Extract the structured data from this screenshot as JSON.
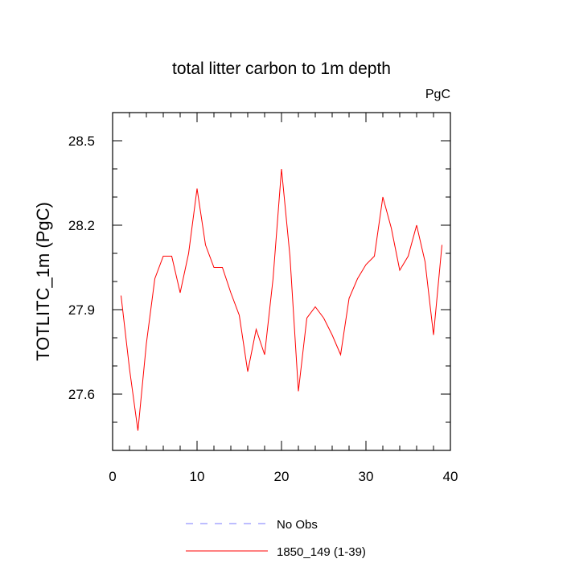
{
  "chart_data": {
    "type": "line",
    "title": "total litter carbon to 1m depth",
    "units_label": "PgC",
    "ylabel": "TOTLITC_1m  (PgC)",
    "xlabel": "",
    "xlim": [
      0,
      40
    ],
    "ylim": [
      27.4,
      28.6
    ],
    "x_major_ticks": [
      0,
      10,
      20,
      30,
      40
    ],
    "x_tick_labels": [
      "0",
      "10",
      "20",
      "30",
      "40"
    ],
    "x_minor_step": 2,
    "y_major_ticks": [
      27.6,
      27.9,
      28.2,
      28.5
    ],
    "y_tick_labels": [
      "27.6",
      "27.9",
      "28.2",
      "28.5"
    ],
    "y_minor_step": 0.1,
    "grid": false,
    "legend_position": "bottom",
    "series": [
      {
        "name": "1850_149 (1-39)",
        "color": "#ff0000",
        "dash": "solid",
        "x": [
          1,
          2,
          3,
          4,
          5,
          6,
          7,
          8,
          9,
          10,
          11,
          12,
          13,
          14,
          15,
          16,
          17,
          18,
          19,
          20,
          21,
          22,
          23,
          24,
          25,
          26,
          27,
          28,
          29,
          30,
          31,
          32,
          33,
          34,
          35,
          36,
          37,
          38,
          39
        ],
        "values": [
          27.95,
          27.69,
          27.47,
          27.78,
          28.01,
          28.09,
          28.09,
          27.96,
          28.1,
          28.33,
          28.13,
          28.05,
          28.05,
          27.96,
          27.88,
          27.68,
          27.83,
          27.74,
          28.01,
          28.4,
          28.09,
          27.61,
          27.87,
          27.91,
          27.87,
          27.81,
          27.74,
          27.94,
          28.01,
          28.06,
          28.09,
          28.3,
          28.19,
          28.04,
          28.09,
          28.2,
          28.07,
          27.81,
          28.13
        ]
      }
    ],
    "legend": [
      {
        "name": "No Obs",
        "color": "#7b7bff",
        "dash": "dashed"
      },
      {
        "name": "1850_149 (1-39)",
        "color": "#ff0000",
        "dash": "solid"
      }
    ]
  }
}
